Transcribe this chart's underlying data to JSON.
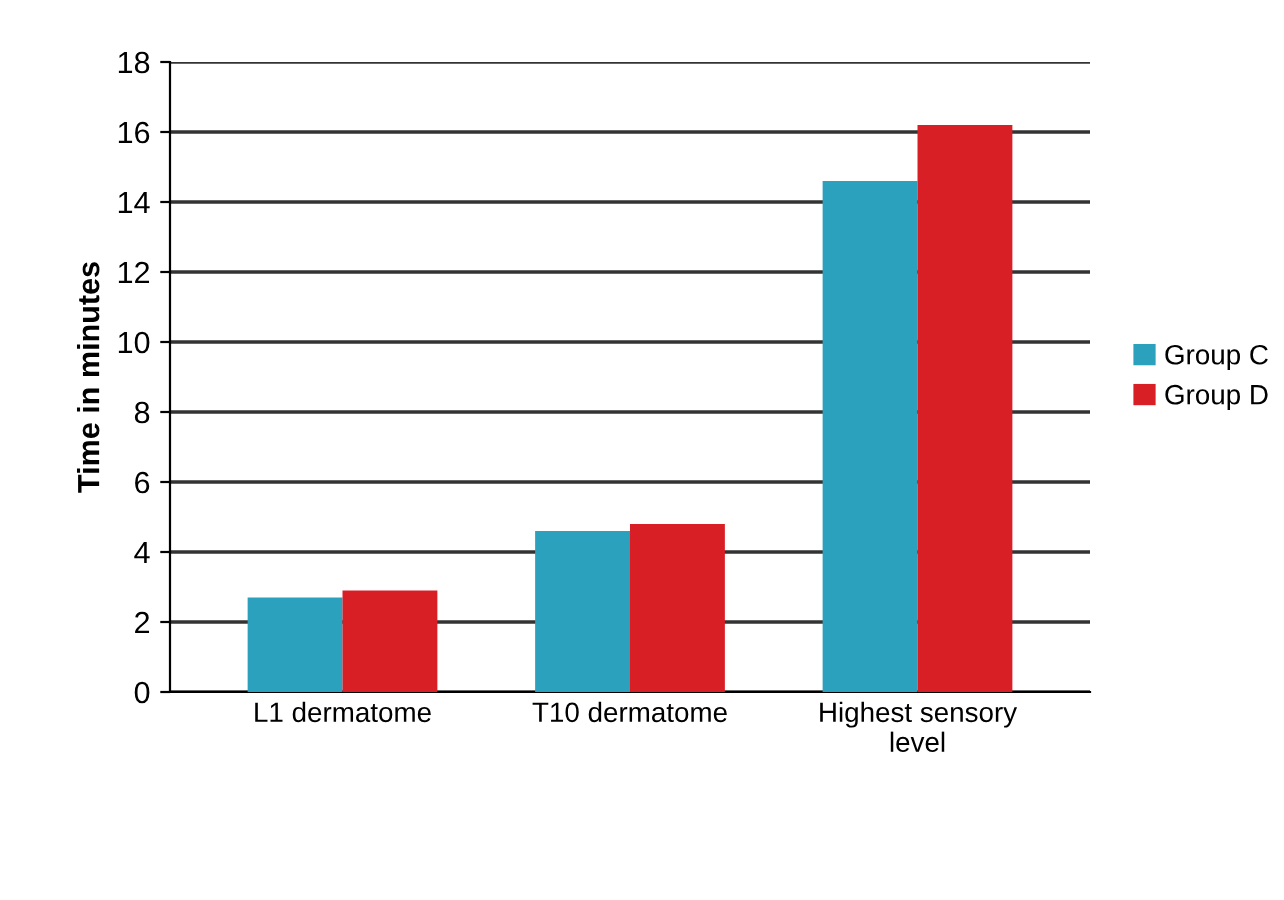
{
  "chart_data": {
    "type": "bar",
    "ylabel": "Time in minutes",
    "categories": [
      "L1 dermatome",
      "T10 dermatome",
      "Highest sensory\nlevel"
    ],
    "series": [
      {
        "name": "Group C",
        "color": "#2ba1be",
        "values": [
          2.7,
          4.6,
          14.6
        ]
      },
      {
        "name": "Group D",
        "color": "#d91f26",
        "values": [
          2.9,
          4.8,
          16.2
        ]
      }
    ],
    "ylim": [
      0,
      18
    ],
    "yticks": [
      0,
      2,
      4,
      6,
      8,
      10,
      12,
      14,
      16,
      18
    ],
    "grid": "y",
    "legend": "right"
  }
}
